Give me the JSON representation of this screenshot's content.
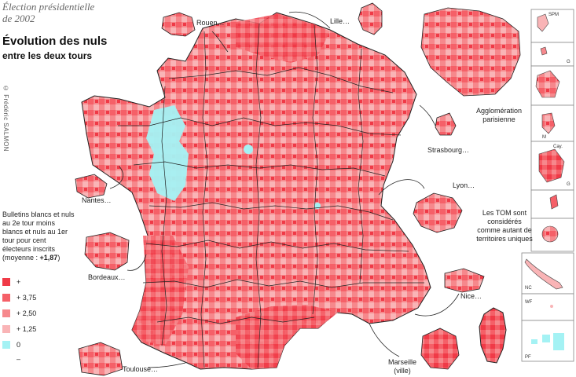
{
  "header": {
    "line1": "Élection présidentielle",
    "line2": "de 2002",
    "title": "Évolution des nuls",
    "subtitle": "entre les deux tours",
    "copyright": "© Frédéric SALMON"
  },
  "legend": {
    "description": "Bulletins blancs et nuls au 2e tour moins blancs et nuls au 1er tour pour cent électeurs inscrits",
    "mean_prefix": "(moyenne : ",
    "mean_value": "+1,87",
    "mean_suffix": ")",
    "classes": [
      {
        "label": "+",
        "color": "#f03a47"
      },
      {
        "label": "+ 3,75",
        "color": "#f56068"
      },
      {
        "label": "+ 2,50",
        "color": "#f6888c"
      },
      {
        "label": "+ 1,25",
        "color": "#f9b4b6"
      },
      {
        "label": "0",
        "color": "#a4f2f4"
      },
      {
        "label": "–",
        "color": "#ffffff"
      }
    ]
  },
  "map": {
    "callouts": {
      "rouen": "Rouen…",
      "lille": "Lille…",
      "paris": "Agglomération parisienne",
      "strasbourg": "Strasbourg…",
      "lyon": "Lyon…",
      "nantes": "Nantes…",
      "bordeaux": "Bordeaux…",
      "nice": "Nice…",
      "marseille": "Marseille (ville)",
      "toulouse": "Toulouse…"
    },
    "tom_note": "Les TOM sont considérés comme autant de territoires uniques",
    "overseas": {
      "spm": "SPM",
      "g1": "G",
      "m": "M",
      "cay": "Cay.",
      "g2": "G",
      "nc": "NC",
      "wf": "WF",
      "pf": "PF"
    }
  }
}
